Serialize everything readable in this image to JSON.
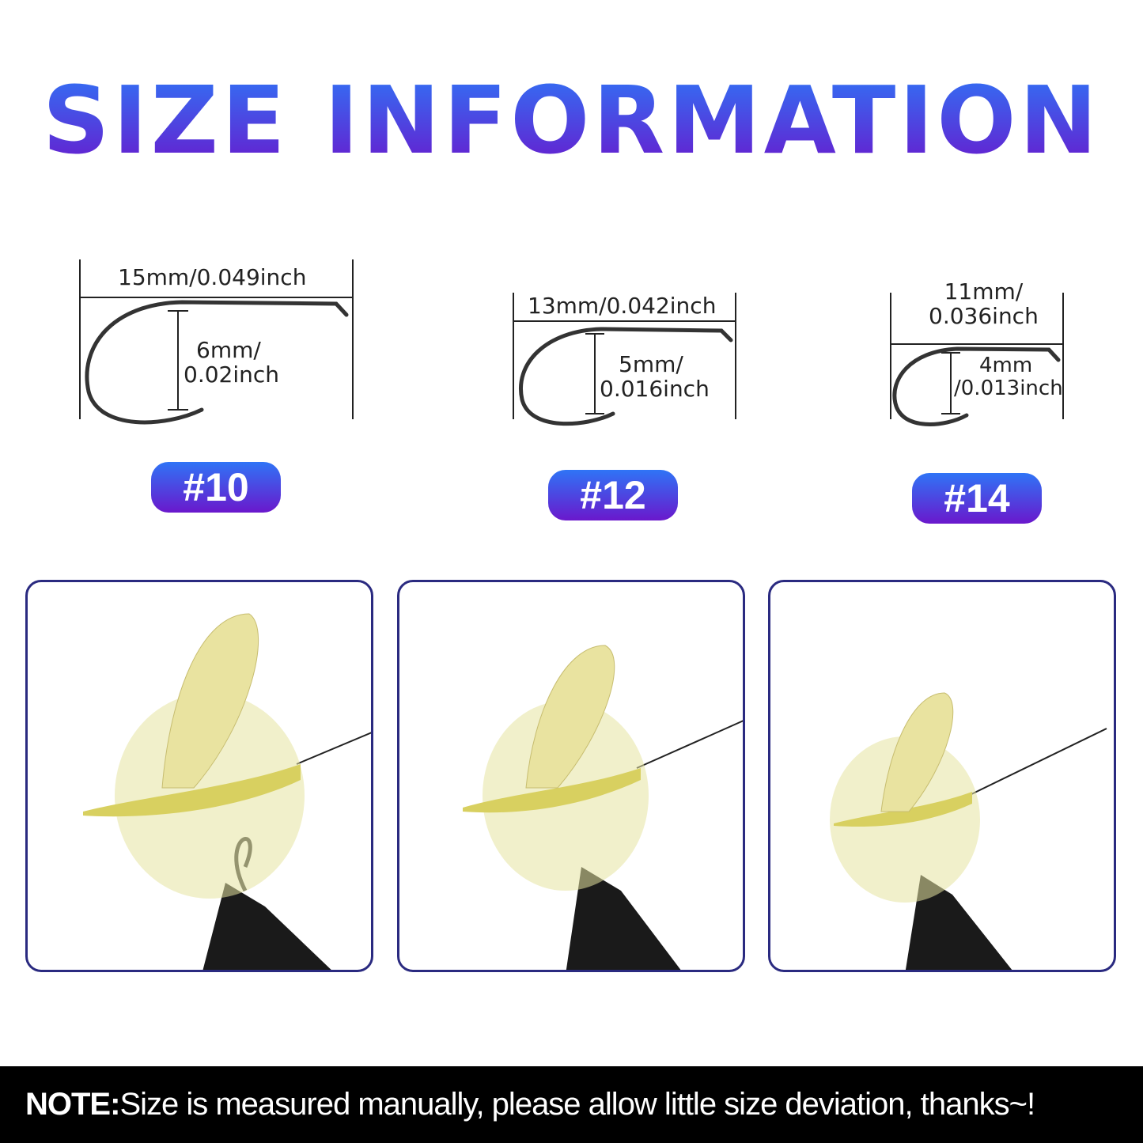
{
  "title": "SIZE INFORMATION",
  "colors": {
    "gradient_top": "#2f74f6",
    "gradient_bottom": "#6a18cc",
    "panel_border": "#2a2a80",
    "note_bg": "#000000"
  },
  "sizes": [
    {
      "badge": "#10",
      "length": "15mm/0.049inch",
      "gap_line1": "6mm/",
      "gap_line2": "0.02inch"
    },
    {
      "badge": "#12",
      "length": "13mm/0.042inch",
      "gap_line1": "5mm/",
      "gap_line2": "0.016inch"
    },
    {
      "badge": "#14",
      "length_line1": "11mm/",
      "length_line2": "0.036inch",
      "gap_line1": "4mm",
      "gap_line2": "/0.013inch"
    }
  ],
  "photos": [
    "yellow-mayfly-dry-fly-size-10",
    "yellow-mayfly-dry-fly-size-12",
    "yellow-mayfly-dry-fly-size-14"
  ],
  "note": {
    "label": "NOTE:",
    "text": "Size is measured manually, please allow little size deviation, thanks~!"
  }
}
